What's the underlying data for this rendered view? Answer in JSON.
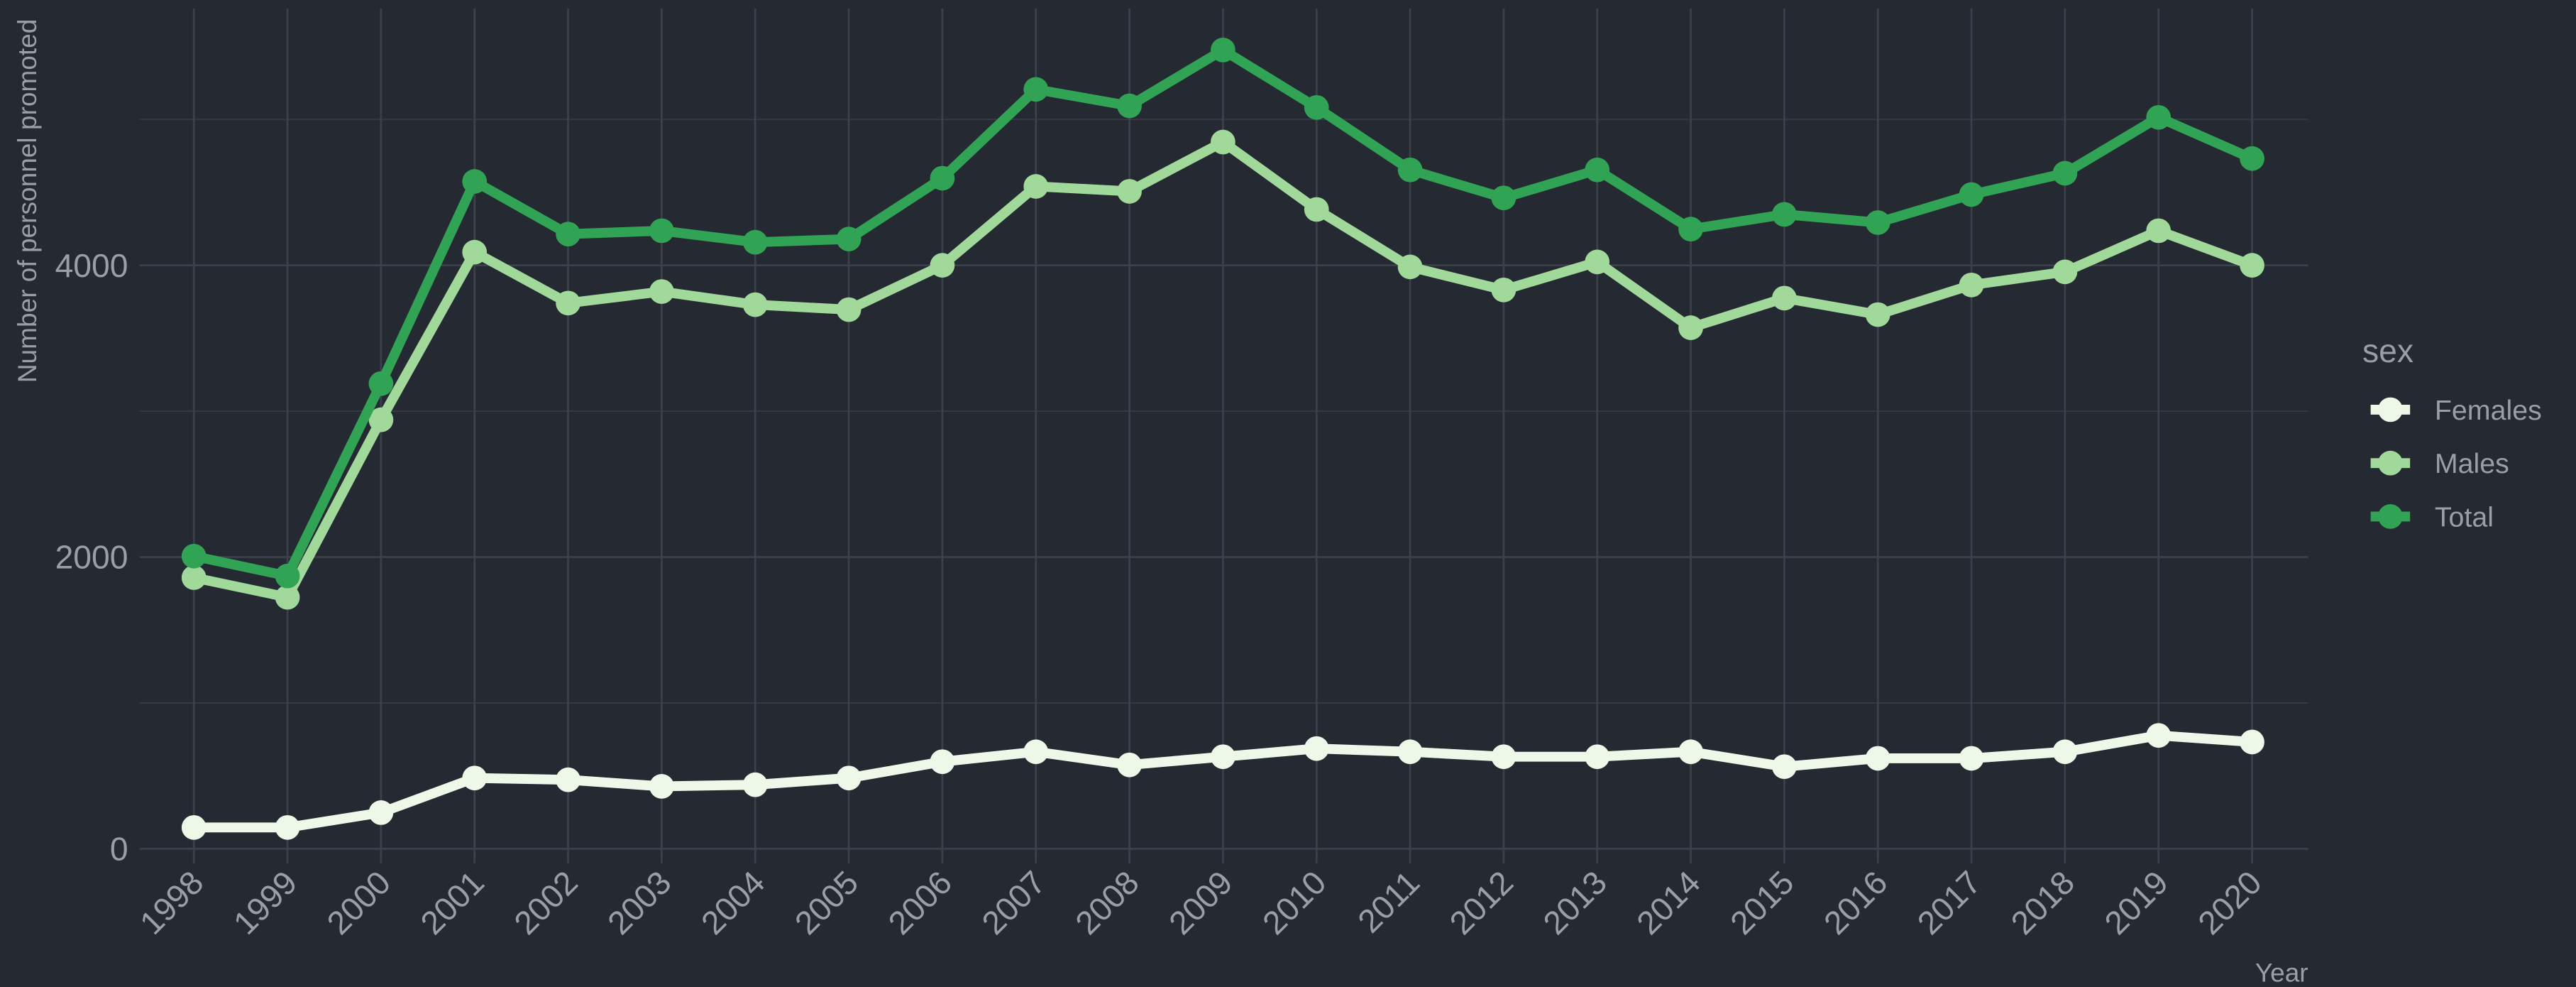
{
  "chart_data": {
    "type": "line",
    "y_label": "Number of personnel promoted",
    "x_label": "Year",
    "legend_title": "sex",
    "legend_position": "right",
    "grid": true,
    "x": [
      1998,
      1999,
      2000,
      2001,
      2002,
      2003,
      2004,
      2005,
      2006,
      2007,
      2008,
      2009,
      2010,
      2011,
      2012,
      2013,
      2014,
      2015,
      2016,
      2017,
      2018,
      2019,
      2020
    ],
    "xlim": [
      1997.42,
      2020.6
    ],
    "xticks": [
      1998,
      1999,
      2000,
      2001,
      2002,
      2003,
      2004,
      2005,
      2006,
      2007,
      2008,
      2009,
      2010,
      2011,
      2012,
      2013,
      2014,
      2015,
      2016,
      2017,
      2018,
      2019,
      2020
    ],
    "ylim": [
      -100,
      5760
    ],
    "yticks": [
      0,
      2000,
      4000
    ],
    "minor_yticks": [
      1000,
      3000,
      5000
    ],
    "series": [
      {
        "name": "Females",
        "color": "#edf8e9",
        "values": [
          146,
          146,
          248,
          485,
          473,
          428,
          439,
          485,
          597,
          665,
          575,
          631,
          687,
          665,
          631,
          631,
          665,
          563,
          620,
          620,
          665,
          777,
          732
        ]
      },
      {
        "name": "Males",
        "color": "#a1d99b",
        "values": [
          1859,
          1724,
          2941,
          4090,
          3741,
          3820,
          3730,
          3696,
          4000,
          4541,
          4507,
          4845,
          4383,
          3989,
          3831,
          4023,
          3572,
          3775,
          3662,
          3865,
          3955,
          4237,
          4000
        ]
      },
      {
        "name": "Total",
        "color": "#31a354",
        "values": [
          2006,
          1870,
          3189,
          4575,
          4214,
          4237,
          4158,
          4180,
          4597,
          5206,
          5093,
          5476,
          5082,
          4654,
          4462,
          4654,
          4248,
          4349,
          4293,
          4485,
          4631,
          5014,
          4732
        ]
      }
    ]
  }
}
